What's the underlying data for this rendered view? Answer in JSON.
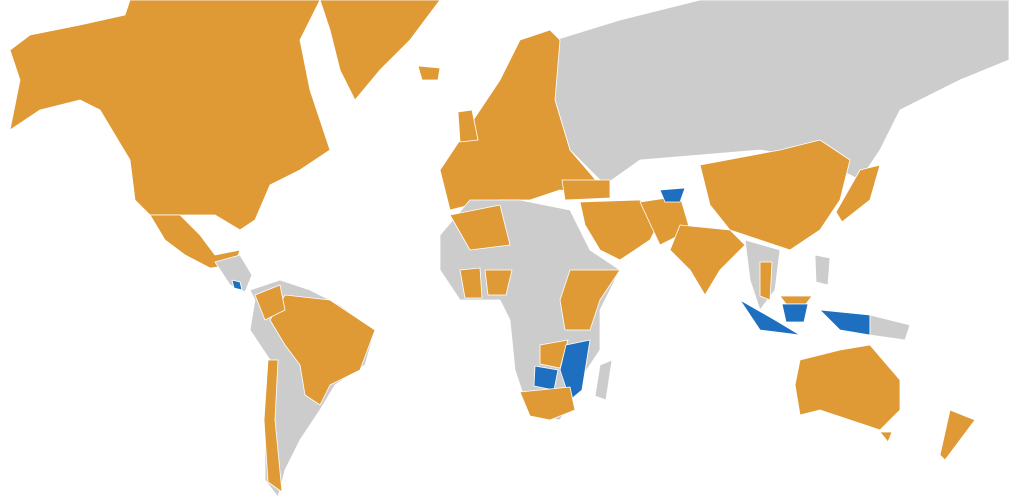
{
  "map": {
    "type": "choropleth",
    "projection": "mercator",
    "legend": "none",
    "colors": {
      "category_a": "#DF9A36",
      "category_b": "#1F6FC0",
      "no_data": "#CCCCCC",
      "background": "#FFFFFF"
    }
  }
}
